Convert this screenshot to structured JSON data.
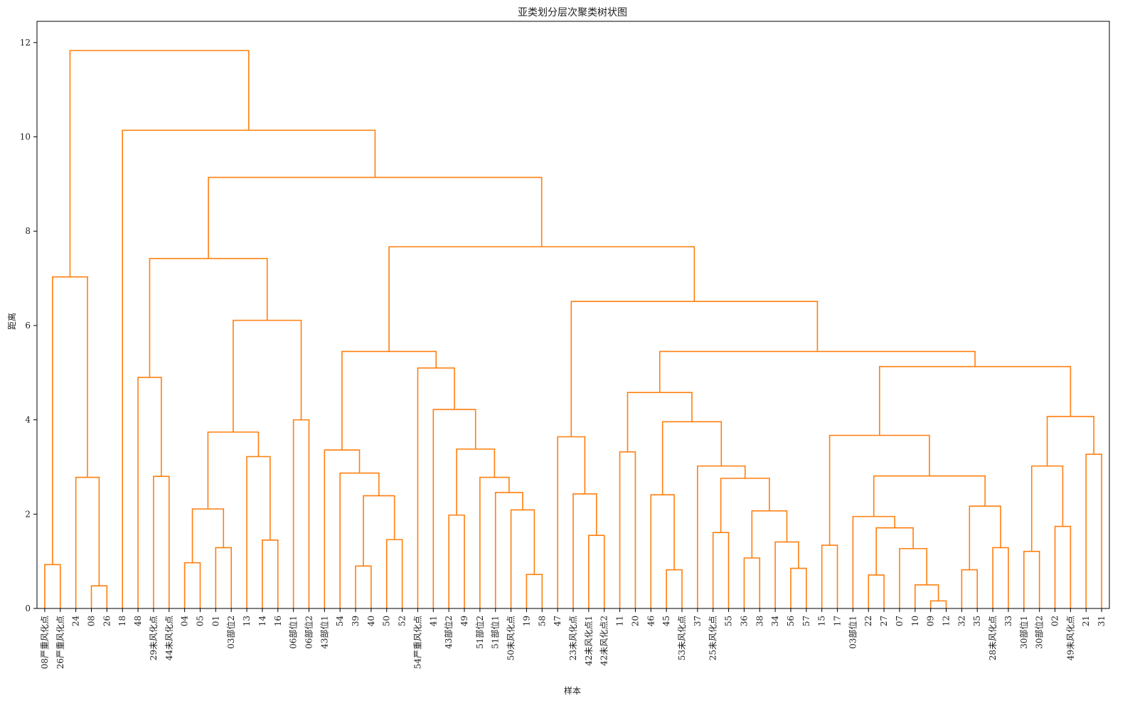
{
  "chart_data": {
    "type": "dendrogram",
    "title": "亚类划分层次聚类树状图",
    "xlabel": "样本",
    "ylabel": "距离",
    "ylim": [
      0,
      12.45
    ],
    "yticks": [
      0,
      2,
      4,
      6,
      8,
      10,
      12
    ],
    "grid": false,
    "line_color": "#ff7f0e",
    "leaves": [
      "08严重风化点",
      "26严重风化点",
      "24",
      "08",
      "26",
      "18",
      "48",
      "29未风化点",
      "44未风化点",
      "04",
      "05",
      "01",
      "03部位2",
      "13",
      "14",
      "16",
      "06部位1",
      "06部位2",
      "43部位1",
      "54",
      "39",
      "40",
      "50",
      "52",
      "54严重风化点",
      "41",
      "43部位2",
      "49",
      "51部位2",
      "51部位1",
      "50未风化点",
      "19",
      "58",
      "47",
      "23未风化点",
      "42未风化点1",
      "42未风化点2",
      "11",
      "20",
      "46",
      "45",
      "53未风化点",
      "37",
      "25未风化点",
      "55",
      "36",
      "38",
      "34",
      "56",
      "57",
      "15",
      "17",
      "03部位1",
      "22",
      "27",
      "07",
      "10",
      "09",
      "12",
      "32",
      "35",
      "28未风化点",
      "33",
      "30部位1",
      "30部位2",
      "02",
      "49未风化点",
      "21",
      "31"
    ],
    "merges": [
      [
        0,
        1,
        0.93
      ],
      [
        69,
        2,
        null
      ],
      [
        3,
        4,
        0.48
      ],
      [
        70,
        71,
        2.78
      ],
      [
        69,
        72,
        7.03
      ],
      [
        7,
        8,
        2.8
      ],
      [
        6,
        74,
        4.9
      ],
      [
        9,
        10,
        0.97
      ],
      [
        11,
        12,
        1.29
      ],
      [
        76,
        77,
        2.11
      ],
      [
        14,
        15,
        1.45
      ],
      [
        13,
        79,
        3.22
      ],
      [
        78,
        80,
        3.74
      ],
      [
        16,
        17,
        4.0
      ],
      [
        81,
        82,
        6.11
      ],
      [
        75,
        83,
        7.42
      ],
      [
        20,
        21,
        0.9
      ],
      [
        22,
        23,
        1.46
      ],
      [
        85,
        86,
        2.39
      ],
      [
        19,
        87,
        2.87
      ],
      [
        18,
        88,
        3.36
      ],
      [
        31,
        32,
        0.72
      ],
      [
        30,
        90,
        2.09
      ],
      [
        29,
        91,
        2.46
      ],
      [
        28,
        92,
        2.78
      ],
      [
        26,
        27,
        1.98
      ],
      [
        93,
        94,
        3.38
      ],
      [
        25,
        95,
        4.22
      ],
      [
        24,
        96,
        5.1
      ],
      [
        89,
        97,
        5.45
      ],
      [
        35,
        36,
        1.55
      ],
      [
        34,
        99,
        2.43
      ],
      [
        33,
        100,
        3.64
      ],
      [
        37,
        38,
        3.32
      ],
      [
        40,
        41,
        0.82
      ],
      [
        39,
        103,
        2.41
      ],
      [
        45,
        46,
        1.07
      ],
      [
        48,
        49,
        0.85
      ],
      [
        47,
        105,
        1.41
      ],
      [
        104,
        106,
        2.07
      ],
      [
        43,
        44,
        1.61
      ],
      [
        107,
        108,
        2.76
      ],
      [
        42,
        109,
        3.02
      ],
      [
        105,
        110,
        null
      ],
      [
        111,
        112,
        3.96
      ],
      [
        102,
        111,
        null
      ]
    ],
    "links": [
      {
        "a": "08严重风化点",
        "b": "26严重风化点",
        "h": 0.93
      },
      {
        "a": "08",
        "b": "26",
        "h": 0.48
      },
      {
        "a": "24",
        "b": "08·26",
        "h": 2.78
      },
      {
        "a": "08严重风化点·26严重风化点",
        "b": "24·08·26",
        "h": 7.03
      },
      {
        "a": "29未风化点",
        "b": "44未风化点",
        "h": 2.8
      },
      {
        "a": "48",
        "b": "29·44",
        "h": 4.9
      },
      {
        "a": "04",
        "b": "05",
        "h": 0.97
      },
      {
        "a": "01",
        "b": "03部位2",
        "h": 1.29
      },
      {
        "a": "04·05",
        "b": "01·03部位2",
        "h": 2.11
      },
      {
        "a": "14",
        "b": "16",
        "h": 1.45
      },
      {
        "a": "13",
        "b": "14·16",
        "h": 3.22
      },
      {
        "a": "04…03部位2",
        "b": "13·14·16",
        "h": 3.74
      },
      {
        "a": "06部位1",
        "b": "06部位2",
        "h": 4.0
      },
      {
        "a": "04…16",
        "b": "06部位1·06部位2",
        "h": 6.11
      },
      {
        "a": "48…44",
        "b": "04…06部位2",
        "h": 7.42
      },
      {
        "a": "39",
        "b": "40",
        "h": 0.9
      },
      {
        "a": "50",
        "b": "52",
        "h": 1.46
      },
      {
        "a": "39·40",
        "b": "50·52",
        "h": 2.39
      },
      {
        "a": "54",
        "b": "39…52",
        "h": 2.87
      },
      {
        "a": "43部位1",
        "b": "54…52",
        "h": 3.36
      },
      {
        "a": "19",
        "b": "58",
        "h": 0.72
      },
      {
        "a": "50未风化点",
        "b": "19·58",
        "h": 2.09
      },
      {
        "a": "51部位1",
        "b": "50未风化点…58",
        "h": 2.46
      },
      {
        "a": "51部位2",
        "b": "51部位1…58",
        "h": 2.78
      },
      {
        "a": "43部位2",
        "b": "49",
        "h": 1.98
      },
      {
        "a": "43部位2·49",
        "b": "51部位2…58",
        "h": 3.38
      },
      {
        "a": "41",
        "b": "43部位2…58",
        "h": 4.22
      },
      {
        "a": "54严重风化点",
        "b": "41…58",
        "h": 5.1
      },
      {
        "a": "43部位1…52",
        "b": "54严重风化点…58",
        "h": 5.45
      },
      {
        "a": "42未风化点1",
        "b": "42未风化点2",
        "h": 1.55
      },
      {
        "a": "23未风化点",
        "b": "42未风化点1·2",
        "h": 2.43
      },
      {
        "a": "47",
        "b": "23…42未风化点2",
        "h": 3.64
      },
      {
        "a": "11",
        "b": "20",
        "h": 3.32
      },
      {
        "a": "45",
        "b": "53未风化点",
        "h": 0.82
      },
      {
        "a": "46",
        "b": "45·53",
        "h": 2.41
      },
      {
        "a": "36",
        "b": "38",
        "h": 1.07
      },
      {
        "a": "56",
        "b": "57",
        "h": 0.85
      },
      {
        "a": "34",
        "b": "56·57",
        "h": 1.41
      },
      {
        "a": "36·38",
        "b": "34·56·57",
        "h": 2.07
      },
      {
        "a": "25未风化点",
        "b": "55",
        "h": 1.61
      },
      {
        "a": "25·55",
        "b": "36…57",
        "h": 2.76
      },
      {
        "a": "37",
        "b": "25…57",
        "h": 3.02
      },
      {
        "a": "46…53",
        "b": "37…57",
        "h": 3.96
      },
      {
        "a": "11·20",
        "b": "46…57",
        "h": 4.58
      },
      {
        "a": "15",
        "b": "17",
        "h": 1.34
      },
      {
        "a": "09",
        "b": "12",
        "h": 0.16
      },
      {
        "a": "10",
        "b": "09·12",
        "h": 0.5
      },
      {
        "a": "07",
        "b": "10·09·12",
        "h": 1.27
      },
      {
        "a": "22",
        "b": "27",
        "h": 0.71
      },
      {
        "a": "22·27",
        "b": "07…12",
        "h": 1.71
      },
      {
        "a": "03部位1",
        "b": "22…12",
        "h": 1.95
      },
      {
        "a": "32",
        "b": "35",
        "h": 0.82
      },
      {
        "a": "28未风化点",
        "b": "33",
        "h": 1.29
      },
      {
        "a": "32·35",
        "b": "28·33",
        "h": 2.17
      },
      {
        "a": "03部位1…12",
        "b": "32…33",
        "h": 2.81
      },
      {
        "a": "15·17",
        "b": "03部位1…33",
        "h": 3.67
      },
      {
        "a": "30部位1",
        "b": "30部位2",
        "h": 1.21
      },
      {
        "a": "02",
        "b": "49未风化点",
        "h": 1.74
      },
      {
        "a": "30部位1·2",
        "b": "02·49未风化点",
        "h": 3.02
      },
      {
        "a": "21",
        "b": "31",
        "h": 3.27
      },
      {
        "a": "30部位1…49未风化点",
        "b": "21·31",
        "h": 4.07
      },
      {
        "a": "15…33",
        "b": "30部位1…31",
        "h": 5.13
      },
      {
        "a": "11…57",
        "b": "15…31",
        "h": 5.45
      },
      {
        "a": "47…42未风化点2",
        "b": "11…31",
        "h": 6.51
      },
      {
        "a": "43部位1…58",
        "b": "47…31",
        "h": 7.67
      },
      {
        "a": "48…06部位2",
        "b": "43部位1…31",
        "h": 9.14
      },
      {
        "a": "18",
        "b": "48…31",
        "h": 10.14
      },
      {
        "a": "08严重风化点…26",
        "b": "18…31",
        "h": 11.83
      }
    ]
  }
}
